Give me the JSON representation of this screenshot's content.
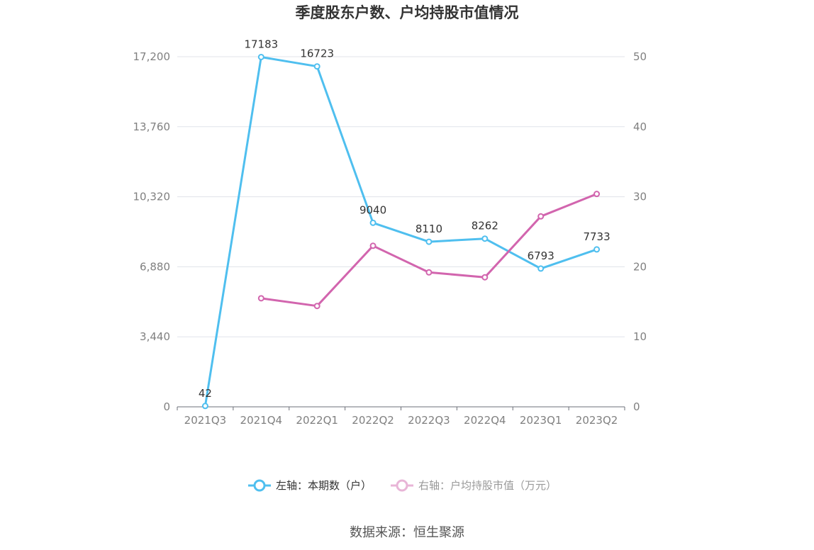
{
  "chart_data": {
    "type": "line",
    "title": "季度股东户数、户均持股市值情况",
    "categories": [
      "2021Q3",
      "2021Q4",
      "2022Q1",
      "2022Q2",
      "2022Q3",
      "2022Q4",
      "2023Q1",
      "2023Q2"
    ],
    "y_left": {
      "ticks": [
        "0",
        "3,440",
        "6,880",
        "10,320",
        "13,760",
        "17,200"
      ],
      "ylim": [
        0,
        17200
      ]
    },
    "y_right": {
      "ticks": [
        "0",
        "10",
        "20",
        "30",
        "40",
        "50"
      ],
      "ylim": [
        0,
        50
      ]
    },
    "series": [
      {
        "name": "左轴：本期数（户）",
        "axis": "left",
        "color": "#4fbfef",
        "values": [
          42,
          17183,
          16723,
          9040,
          8110,
          8262,
          6793,
          7733
        ],
        "labels": [
          "42",
          "17183",
          "16723",
          "9040",
          "8110",
          "8262",
          "6793",
          "7733"
        ]
      },
      {
        "name": "右轴：户均持股市值（万元）",
        "axis": "right",
        "color": "#d265ae",
        "values": [
          null,
          15.5,
          14.4,
          23.0,
          19.2,
          18.5,
          27.2,
          30.4
        ]
      }
    ],
    "grid": true,
    "legend_position": "bottom-center"
  },
  "source_text": "数据来源：恒生聚源"
}
